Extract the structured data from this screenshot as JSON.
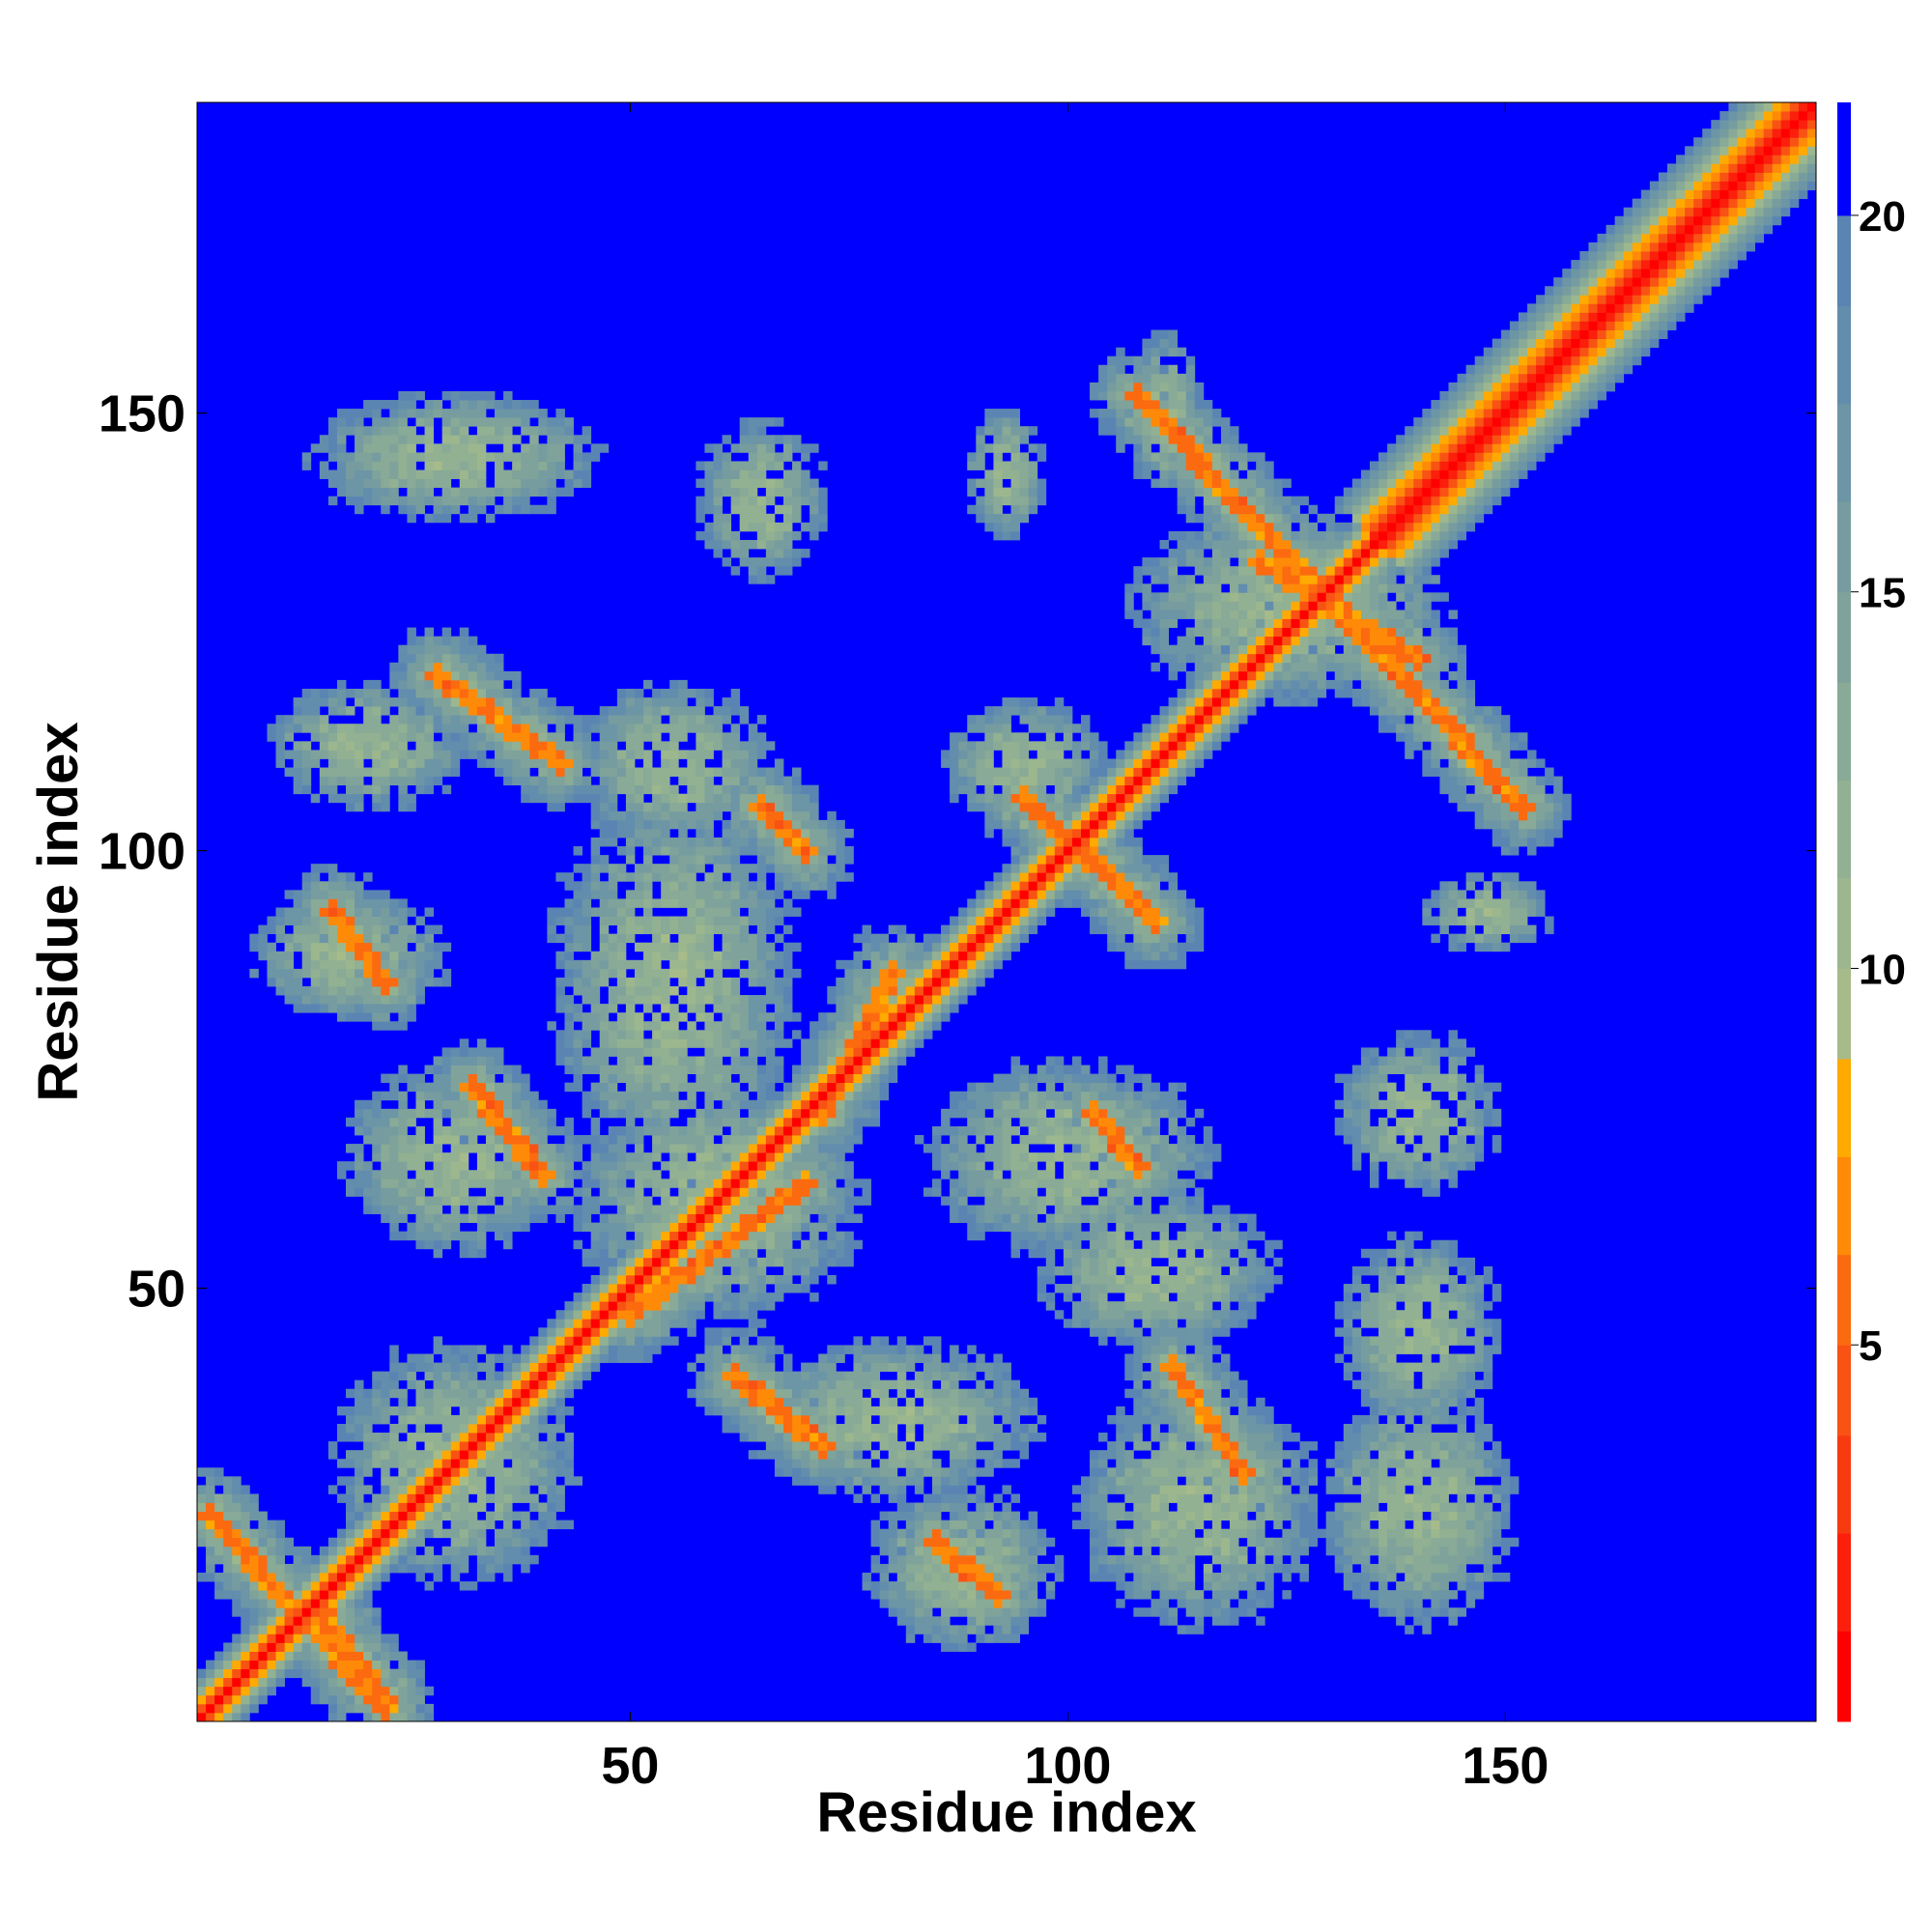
{
  "chart_data": {
    "type": "heatmap",
    "title": "",
    "xlabel": "Residue index",
    "ylabel": "Residue index",
    "x_range": [
      1,
      185
    ],
    "y_range": [
      1,
      185
    ],
    "x_ticks": [
      50,
      100,
      150
    ],
    "y_ticks": [
      50,
      100,
      150
    ],
    "colorbar": {
      "range": [
        0,
        21.5
      ],
      "ticks": [
        5,
        10,
        15,
        20
      ],
      "levels": [
        {
          "from": 0,
          "to": 1.2,
          "color": "#ff0000"
        },
        {
          "from": 1.2,
          "to": 2.5,
          "color": "#fb1f0c"
        },
        {
          "from": 2.5,
          "to": 3.8,
          "color": "#f83a10"
        },
        {
          "from": 3.8,
          "to": 5.0,
          "color": "#f85214"
        },
        {
          "from": 5.0,
          "to": 6.2,
          "color": "#fc6a10"
        },
        {
          "from": 6.2,
          "to": 7.5,
          "color": "#ff8a08"
        },
        {
          "from": 7.5,
          "to": 8.8,
          "color": "#ffaa00"
        },
        {
          "from": 8.8,
          "to": 10.0,
          "color": "#a7bb8a"
        },
        {
          "from": 10.0,
          "to": 11.2,
          "color": "#9cb78e"
        },
        {
          "from": 11.2,
          "to": 12.5,
          "color": "#92b192"
        },
        {
          "from": 12.5,
          "to": 13.8,
          "color": "#88aa96"
        },
        {
          "from": 13.8,
          "to": 15.0,
          "color": "#7fa39b"
        },
        {
          "from": 15.0,
          "to": 16.2,
          "color": "#769ca0"
        },
        {
          "from": 16.2,
          "to": 17.5,
          "color": "#6c95a6"
        },
        {
          "from": 17.5,
          "to": 18.8,
          "color": "#638dac"
        },
        {
          "from": 18.8,
          "to": 20.0,
          "color": "#5a85b3"
        },
        {
          "from": 20.0,
          "to": 21.5,
          "color": "#0000ff"
        }
      ]
    },
    "background_value": 21.5,
    "main_diagonal": {
      "from": [
        1,
        1
      ],
      "to": [
        185,
        185
      ]
    },
    "contact_features": [
      {
        "type": "anti",
        "from": [
          2,
          24
        ],
        "to": [
          22,
          2
        ]
      },
      {
        "type": "parallel",
        "from": [
          72,
          70
        ],
        "to": [
          80,
          86
        ]
      },
      {
        "type": "parallel",
        "from": [
          50,
          47
        ],
        "to": [
          70,
          62
        ]
      },
      {
        "type": "anti",
        "from": [
          95,
          106
        ],
        "to": [
          110,
          92
        ]
      },
      {
        "type": "anti",
        "from": [
          122,
          133
        ],
        "to": [
          140,
          122
        ]
      },
      {
        "type": "anti",
        "from": [
          108,
          152
        ],
        "to": [
          152,
          105
        ]
      },
      {
        "type": "segment",
        "from": [
          28,
          120
        ],
        "to": [
          42,
          110
        ]
      },
      {
        "type": "segment",
        "from": [
          16,
          93
        ],
        "to": [
          22,
          85
        ]
      },
      {
        "type": "segment",
        "from": [
          32,
          73
        ],
        "to": [
          40,
          63
        ]
      },
      {
        "type": "segment",
        "from": [
          65,
          105
        ],
        "to": [
          70,
          100
        ]
      },
      {
        "type": "segment",
        "from": [
          103,
          70
        ],
        "to": [
          108,
          64
        ]
      },
      {
        "type": "segment",
        "from": [
          62,
          40
        ],
        "to": [
          72,
          32
        ]
      },
      {
        "type": "segment",
        "from": [
          85,
          21
        ],
        "to": [
          92,
          15
        ]
      },
      {
        "type": "segment",
        "from": [
          112,
          41
        ],
        "to": [
          120,
          29
        ]
      },
      {
        "type": "segment",
        "from": [
          14,
          14
        ],
        "to": [
          22,
          3
        ]
      }
    ],
    "contact_regions": [
      {
        "center": [
          30,
          145
        ],
        "spread": [
          18,
          8
        ]
      },
      {
        "center": [
          65,
          140
        ],
        "spread": [
          8,
          10
        ]
      },
      {
        "center": [
          93,
          143
        ],
        "spread": [
          5,
          8
        ]
      },
      {
        "center": [
          111,
          150
        ],
        "spread": [
          5,
          10
        ]
      },
      {
        "center": [
          20,
          112
        ],
        "spread": [
          12,
          8
        ]
      },
      {
        "center": [
          55,
          110
        ],
        "spread": [
          12,
          10
        ]
      },
      {
        "center": [
          95,
          110
        ],
        "spread": [
          10,
          8
        ]
      },
      {
        "center": [
          18,
          88
        ],
        "spread": [
          12,
          8
        ]
      },
      {
        "center": [
          55,
          85
        ],
        "spread": [
          15,
          25
        ]
      },
      {
        "center": [
          30,
          65
        ],
        "spread": [
          14,
          12
        ]
      },
      {
        "center": [
          60,
          60
        ],
        "spread": [
          18,
          15
        ]
      },
      {
        "center": [
          100,
          65
        ],
        "spread": [
          18,
          12
        ]
      },
      {
        "center": [
          140,
          70
        ],
        "spread": [
          10,
          10
        ]
      },
      {
        "center": [
          110,
          52
        ],
        "spread": [
          15,
          10
        ]
      },
      {
        "center": [
          140,
          45
        ],
        "spread": [
          10,
          12
        ]
      },
      {
        "center": [
          30,
          30
        ],
        "spread": [
          15,
          15
        ]
      },
      {
        "center": [
          80,
          35
        ],
        "spread": [
          18,
          10
        ]
      },
      {
        "center": [
          115,
          25
        ],
        "spread": [
          15,
          15
        ]
      },
      {
        "center": [
          140,
          25
        ],
        "spread": [
          12,
          15
        ]
      },
      {
        "center": [
          88,
          18
        ],
        "spread": [
          12,
          10
        ]
      },
      {
        "center": [
          125,
          128
        ],
        "spread": [
          20,
          12
        ]
      },
      {
        "center": [
          148,
          93
        ],
        "spread": [
          8,
          5
        ]
      }
    ]
  }
}
